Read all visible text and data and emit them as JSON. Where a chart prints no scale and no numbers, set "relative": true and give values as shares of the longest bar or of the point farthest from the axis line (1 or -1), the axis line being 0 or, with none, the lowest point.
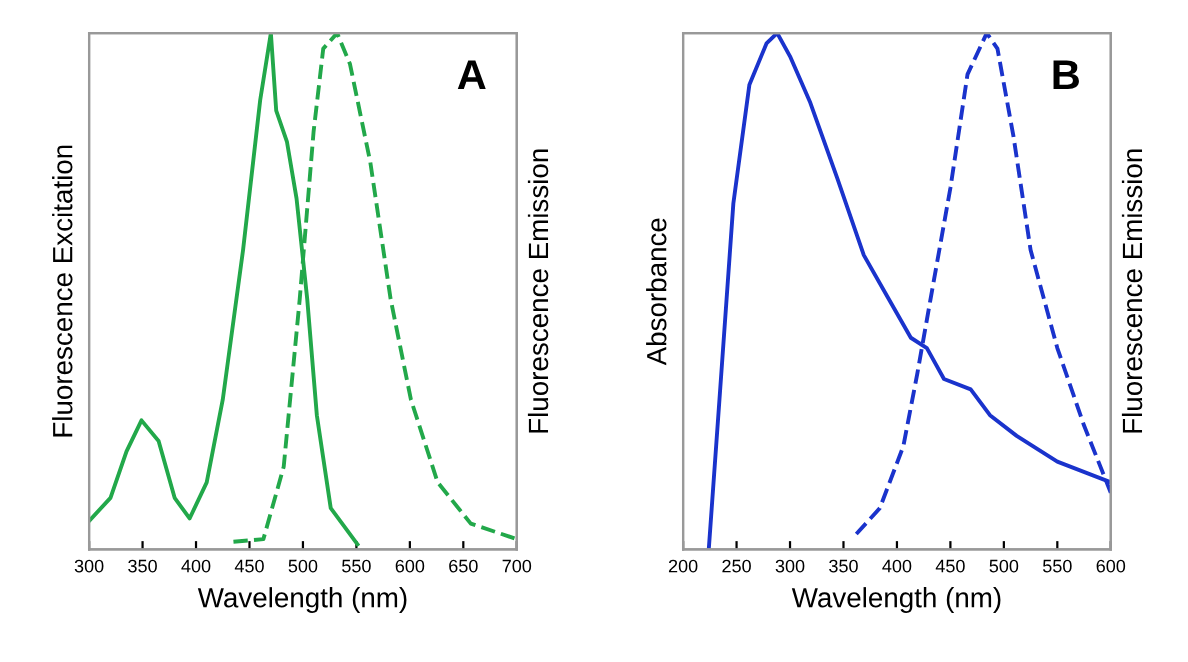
{
  "chart_data": [
    {
      "type": "line",
      "title": "A",
      "xlabel": "Wavelength (nm)",
      "ylabel": "Fluorescence Excitation",
      "y2label": "Fluorescence Emission",
      "relative": true,
      "tick_labels": "x",
      "xlim": [
        300,
        700
      ],
      "xticks": [
        300,
        350,
        400,
        450,
        500,
        550,
        600,
        650,
        700
      ],
      "series": [
        {
          "color": "#22a84a",
          "line_style": "solid",
          "x": [
            300,
            320,
            335,
            349,
            365,
            380,
            394,
            410,
            425,
            444,
            460,
            470,
            475,
            485,
            494,
            504,
            513,
            526,
            551
          ],
          "values": [
            0.055,
            0.1,
            0.19,
            0.25,
            0.21,
            0.1,
            0.06,
            0.13,
            0.29,
            0.58,
            0.87,
            1.0,
            0.85,
            0.79,
            0.68,
            0.485,
            0.26,
            0.08,
            0.01
          ]
        },
        {
          "color": "#22a84a",
          "line_style": "dashed",
          "axis": "y2",
          "x": [
            435,
            463,
            482,
            497,
            510,
            519,
            532,
            544,
            563,
            582,
            601,
            626,
            657,
            700
          ],
          "values": [
            0.015,
            0.02,
            0.16,
            0.485,
            0.81,
            0.97,
            1.0,
            0.94,
            0.75,
            0.485,
            0.29,
            0.13,
            0.05,
            0.02
          ]
        }
      ]
    },
    {
      "type": "line",
      "title": "B",
      "xlabel": "Wavelength (nm)",
      "ylabel": "Absorbance",
      "y2label": "Fluorescence Emission",
      "relative": true,
      "tick_labels": "x",
      "xlim": [
        200,
        600
      ],
      "xticks": [
        200,
        250,
        300,
        350,
        400,
        450,
        500,
        550,
        600
      ],
      "series": [
        {
          "color": "#1a33cc",
          "line_style": "solid",
          "x": [
            224,
            234,
            247,
            262,
            278,
            288,
            300,
            319,
            344,
            369,
            391,
            413,
            428,
            444,
            469,
            487,
            512,
            550,
            600
          ],
          "values": [
            0,
            0.29,
            0.67,
            0.9,
            0.98,
            1.0,
            0.955,
            0.865,
            0.72,
            0.57,
            0.49,
            0.41,
            0.39,
            0.33,
            0.31,
            0.26,
            0.22,
            0.17,
            0.13
          ]
        },
        {
          "color": "#1a33cc",
          "line_style": "dashed",
          "axis": "y2",
          "x": [
            362,
            384,
            406,
            419,
            431,
            450,
            466,
            484,
            494,
            509,
            525,
            550,
            575,
            600
          ],
          "values": [
            0.03,
            0.08,
            0.2,
            0.34,
            0.48,
            0.7,
            0.92,
            1.0,
            0.97,
            0.8,
            0.58,
            0.39,
            0.24,
            0.11
          ]
        }
      ]
    }
  ]
}
